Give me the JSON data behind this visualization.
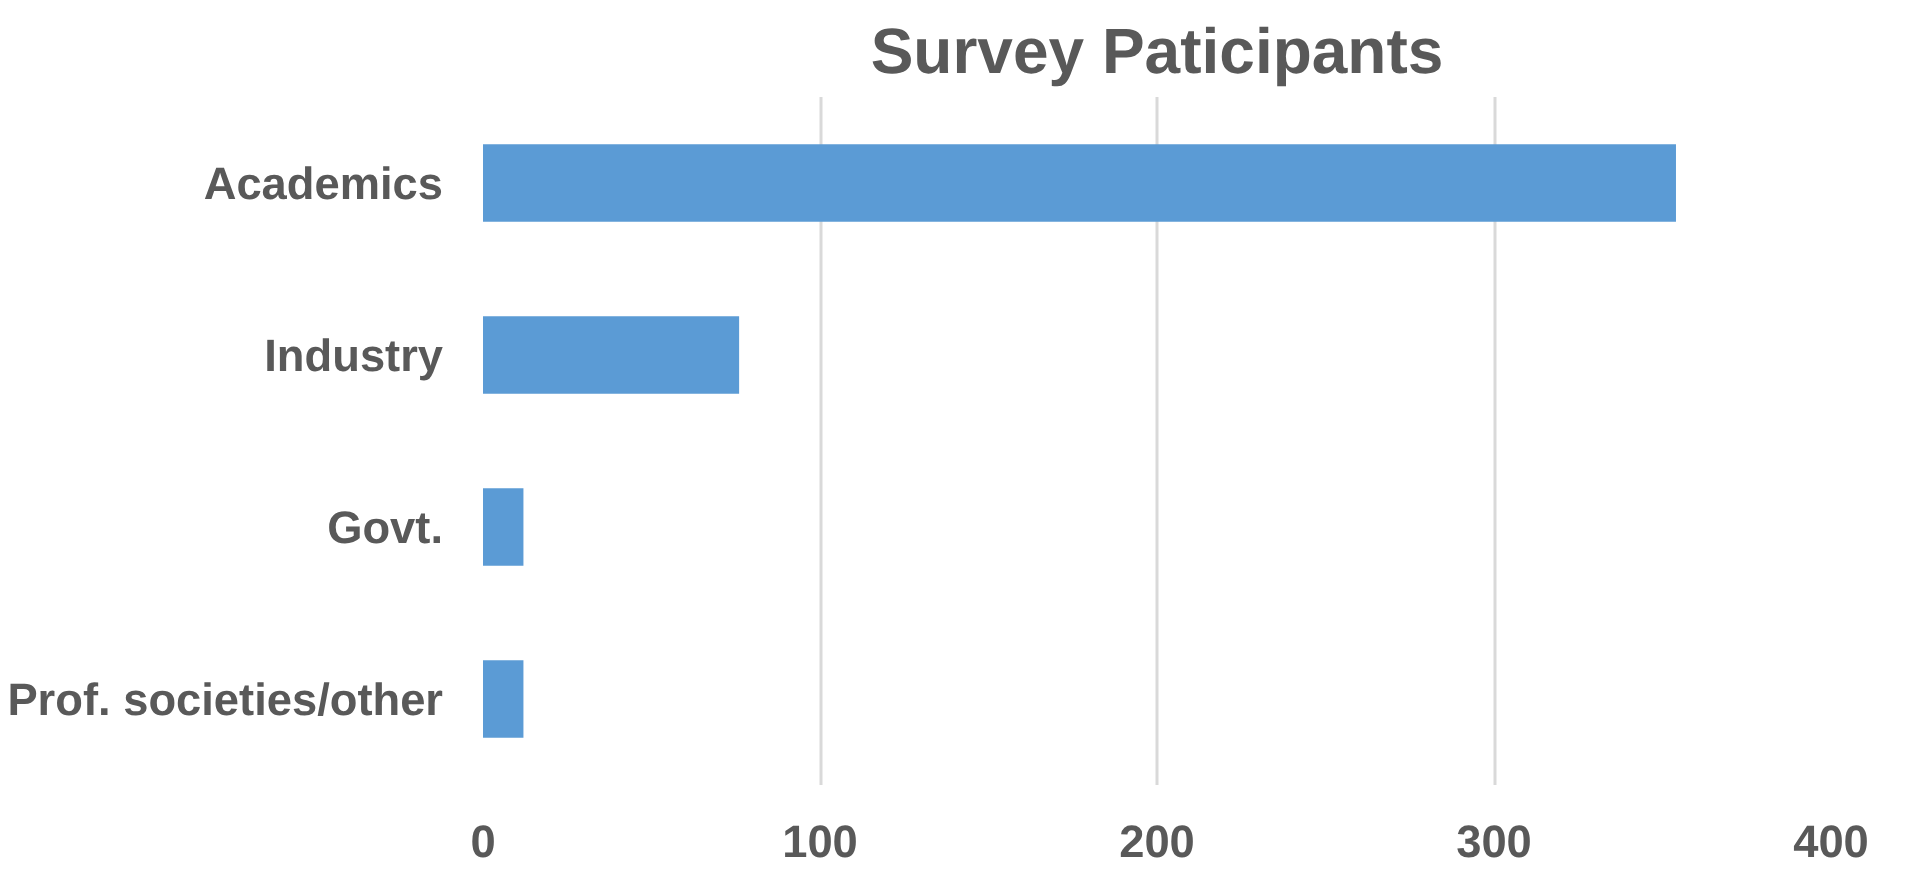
{
  "chart_data": {
    "type": "bar",
    "orientation": "horizontal",
    "title": "Survey Paticipants",
    "categories": [
      "Academics",
      "Industry",
      "Govt.",
      "Prof. societies/other"
    ],
    "values": [
      354,
      76,
      12,
      12
    ],
    "color": "#5b9bd5",
    "xlim": [
      0,
      400
    ],
    "xticks": [
      0,
      100,
      200,
      300,
      400
    ],
    "grid": "x"
  }
}
